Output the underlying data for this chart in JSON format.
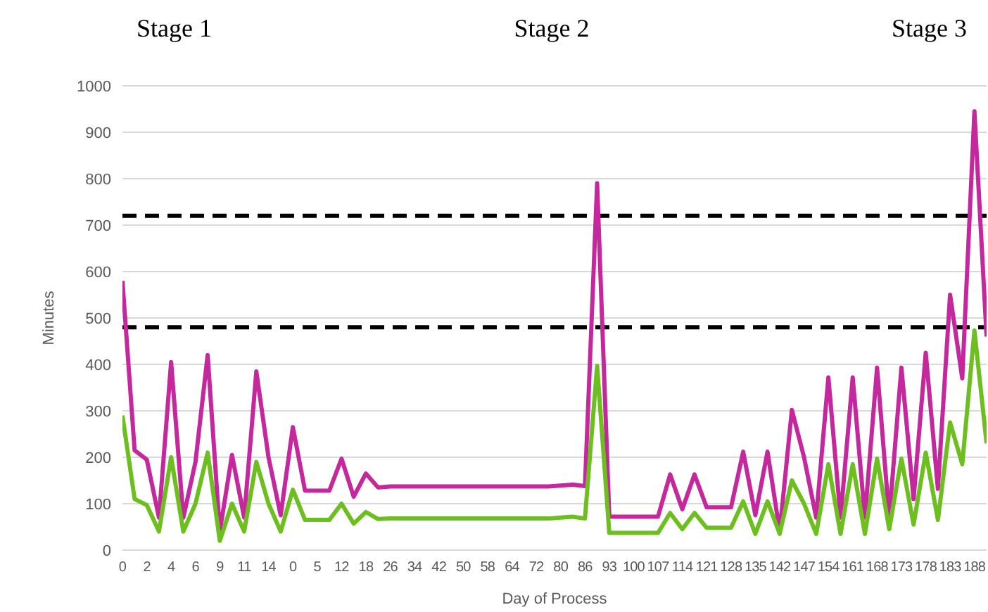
{
  "chart_data": {
    "type": "line",
    "annotations": [
      "Stage 1",
      "Stage 2",
      "Stage 3"
    ],
    "xlabel": "Day of Process",
    "ylabel": "Minutes",
    "categories": [
      "0",
      null,
      "2",
      null,
      "4",
      null,
      "6",
      null,
      "9",
      null,
      "11",
      null,
      "14",
      null,
      "0",
      null,
      "5",
      null,
      "12",
      null,
      "18",
      null,
      "26",
      null,
      "34",
      null,
      "42",
      null,
      "50",
      null,
      "58",
      null,
      "64",
      null,
      "72",
      null,
      "80",
      null,
      "86",
      null,
      "93",
      null,
      "100",
      null,
      "107",
      null,
      "114",
      null,
      "121",
      null,
      "128",
      null,
      "135",
      null,
      "142",
      null,
      "147",
      null,
      "154",
      null,
      "161",
      null,
      "168",
      null,
      "173",
      null,
      "178",
      null,
      "183",
      null,
      "188",
      null
    ],
    "series": [
      {
        "color": "#c4289c",
        "values": [
          580,
          215,
          195,
          70,
          405,
          70,
          190,
          420,
          40,
          205,
          70,
          385,
          200,
          75,
          265,
          128,
          128,
          128,
          197,
          115,
          165,
          135,
          137,
          137,
          137,
          137,
          137,
          137,
          137,
          137,
          137,
          137,
          137,
          137,
          137,
          137,
          139,
          141,
          138,
          790,
          72,
          72,
          72,
          72,
          72,
          163,
          88,
          163,
          92,
          92,
          92,
          212,
          75,
          212,
          40,
          302,
          200,
          70,
          372,
          70,
          372,
          70,
          393,
          70,
          393,
          110,
          425,
          132,
          550,
          370,
          945,
          460
        ]
      },
      {
        "color": "#6cbf1e",
        "values": [
          290,
          110,
          97,
          40,
          200,
          40,
          100,
          210,
          20,
          100,
          40,
          190,
          100,
          40,
          130,
          65,
          65,
          65,
          100,
          57,
          82,
          67,
          68,
          68,
          68,
          68,
          68,
          68,
          68,
          68,
          68,
          68,
          68,
          68,
          68,
          68,
          70,
          72,
          68,
          397,
          37,
          37,
          37,
          37,
          37,
          80,
          45,
          80,
          48,
          48,
          48,
          105,
          35,
          105,
          35,
          150,
          100,
          35,
          185,
          35,
          185,
          35,
          197,
          45,
          197,
          55,
          210,
          65,
          275,
          185,
          473,
          230
        ]
      }
    ],
    "ylim": [
      0,
      1000
    ],
    "yticks": [
      0,
      100,
      200,
      300,
      400,
      500,
      600,
      700,
      800,
      900,
      1000
    ],
    "grid": "y",
    "marker": "none",
    "line_style": "solid",
    "legend": false,
    "ref_lines": [
      {
        "axis": "y",
        "value": 480,
        "color": "#000000",
        "line_style": "dashed"
      },
      {
        "axis": "y",
        "value": 720,
        "color": "#000000",
        "line_style": "dashed"
      }
    ]
  }
}
